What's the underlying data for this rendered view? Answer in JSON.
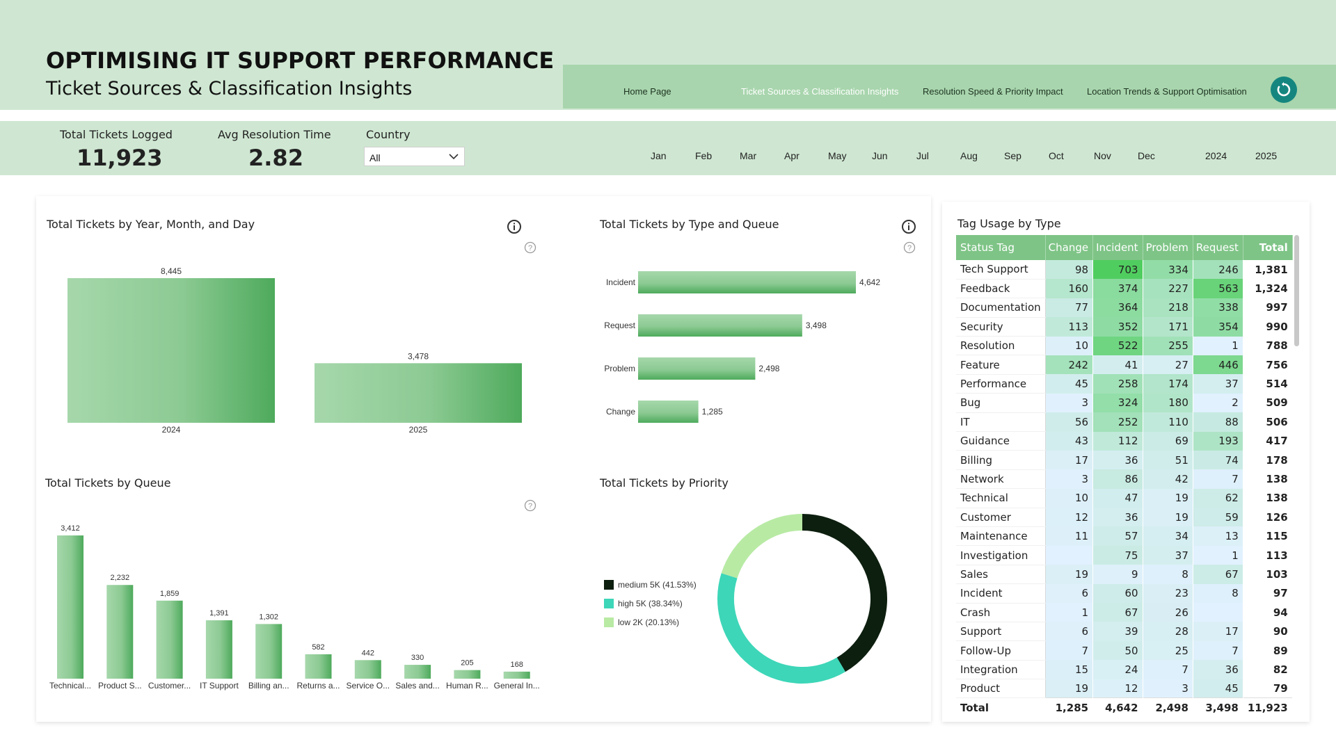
{
  "header": {
    "title": "OPTIMISING IT SUPPORT PERFORMANCE",
    "subtitle": "Ticket Sources & Classification Insights"
  },
  "nav": {
    "items": [
      "Home Page",
      "Ticket Sources & Classification Insights",
      "Resolution Speed & Priority Impact",
      "Location Trends & Support Optimisation"
    ],
    "active_index": 1
  },
  "kpis": {
    "total_label": "Total Tickets Logged",
    "total_value": "11,923",
    "avg_label": "Avg Resolution Time",
    "avg_value": "2.82"
  },
  "filters": {
    "country_label": "Country",
    "country_value": "All",
    "months": [
      "Jan",
      "Feb",
      "Mar",
      "Apr",
      "May",
      "Jun",
      "Jul",
      "Aug",
      "Sep",
      "Oct",
      "Nov",
      "Dec"
    ],
    "years": [
      "2024",
      "2025"
    ]
  },
  "colors": {
    "bar_light": "#a6d7ab",
    "bar_dark": "#4eaa5c",
    "donut_medium": "#0d1f0f",
    "donut_high": "#3dd6b8",
    "donut_low": "#b8eaa4",
    "header_bg": "#cfe7d2",
    "nav_bg": "#a8d5ad"
  },
  "chart_data": [
    {
      "type": "bar",
      "title": "Total Tickets by Year, Month, and Day",
      "categories": [
        "2024",
        "2025"
      ],
      "values": [
        8445,
        3478
      ],
      "value_labels": [
        "8,445",
        "3,478"
      ],
      "ylim": [
        0,
        8445
      ]
    },
    {
      "type": "bar",
      "orientation": "horizontal",
      "title": "Total Tickets by Type and Queue",
      "categories": [
        "Incident",
        "Request",
        "Problem",
        "Change"
      ],
      "values": [
        4642,
        3498,
        2498,
        1285
      ],
      "value_labels": [
        "4,642",
        "3,498",
        "2,498",
        "1,285"
      ],
      "xlim": [
        0,
        4642
      ]
    },
    {
      "type": "bar",
      "title": "Total Tickets by Queue",
      "categories": [
        "Technical...",
        "Product S...",
        "Customer...",
        "IT Support",
        "Billing an...",
        "Returns a...",
        "Service O...",
        "Sales and...",
        "Human R...",
        "General In..."
      ],
      "values": [
        3412,
        2232,
        1859,
        1391,
        1302,
        582,
        442,
        330,
        205,
        168
      ],
      "value_labels": [
        "3,412",
        "2,232",
        "1,859",
        "1,391",
        "1,302",
        "582",
        "442",
        "330",
        "205",
        "168"
      ],
      "ylim": [
        0,
        3412
      ]
    },
    {
      "type": "pie",
      "title": "Total Tickets by Priority",
      "categories": [
        "medium",
        "high",
        "low"
      ],
      "values": [
        41.53,
        38.34,
        20.13
      ],
      "legend_labels": [
        "medium 5K (41.53%)",
        "high 5K (38.34%)",
        "low 2K (20.13%)"
      ],
      "legend": "left"
    },
    {
      "type": "table",
      "title": "Tag Usage by Type",
      "columns": [
        "Status Tag",
        "Change",
        "Incident",
        "Problem",
        "Request",
        "Total"
      ],
      "rows": [
        [
          "Tech Support",
          98,
          703,
          334,
          246,
          "1,381"
        ],
        [
          "Feedback",
          160,
          374,
          227,
          563,
          "1,324"
        ],
        [
          "Documentation",
          77,
          364,
          218,
          338,
          "997"
        ],
        [
          "Security",
          113,
          352,
          171,
          354,
          "990"
        ],
        [
          "Resolution",
          10,
          522,
          255,
          1,
          "788"
        ],
        [
          "Feature",
          242,
          41,
          27,
          446,
          "756"
        ],
        [
          "Performance",
          45,
          258,
          174,
          37,
          "514"
        ],
        [
          "Bug",
          3,
          324,
          180,
          2,
          "509"
        ],
        [
          "IT",
          56,
          252,
          110,
          88,
          "506"
        ],
        [
          "Guidance",
          43,
          112,
          69,
          193,
          "417"
        ],
        [
          "Billing",
          17,
          36,
          51,
          74,
          "178"
        ],
        [
          "Network",
          3,
          86,
          42,
          7,
          "138"
        ],
        [
          "Technical",
          10,
          47,
          19,
          62,
          "138"
        ],
        [
          "Customer",
          12,
          36,
          19,
          59,
          "126"
        ],
        [
          "Maintenance",
          11,
          57,
          34,
          13,
          "115"
        ],
        [
          "Investigation",
          null,
          75,
          37,
          1,
          "113"
        ],
        [
          "Sales",
          19,
          9,
          8,
          67,
          "103"
        ],
        [
          "Incident",
          6,
          60,
          23,
          8,
          "97"
        ],
        [
          "Crash",
          1,
          67,
          26,
          null,
          "94"
        ],
        [
          "Support",
          6,
          39,
          28,
          17,
          "90"
        ],
        [
          "Follow-Up",
          7,
          50,
          25,
          7,
          "89"
        ],
        [
          "Integration",
          15,
          24,
          7,
          36,
          "82"
        ],
        [
          "Product",
          19,
          12,
          3,
          45,
          "79"
        ]
      ],
      "total_row": [
        "Total",
        "1,285",
        "4,642",
        "2,498",
        "3,498",
        "11,923"
      ]
    }
  ]
}
